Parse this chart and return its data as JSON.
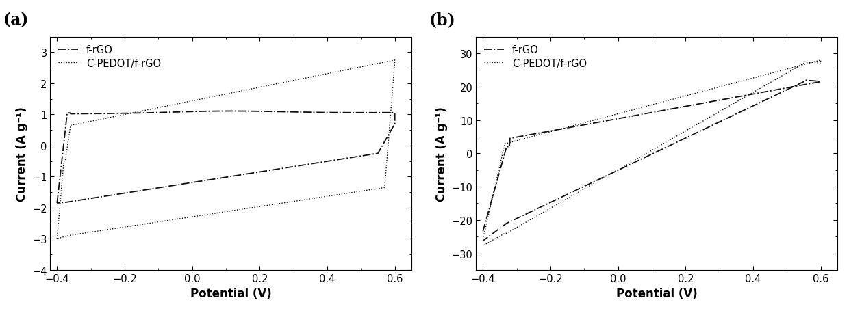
{
  "panel_a": {
    "label": "(a)",
    "xlabel": "Potential (V)",
    "ylabel": "Current (A g⁻¹)",
    "xlim": [
      -0.42,
      0.65
    ],
    "ylim": [
      -4,
      3.5
    ],
    "yticks": [
      -4,
      -3,
      -2,
      -1,
      0,
      1,
      2,
      3
    ],
    "xticks": [
      -0.4,
      -0.2,
      0.0,
      0.2,
      0.4,
      0.6
    ],
    "legend1": "f-rGO",
    "legend2": "C-PEDOT/f-rGO",
    "line_color": "#111111"
  },
  "panel_b": {
    "label": "(b)",
    "xlabel": "Potential (V)",
    "ylabel": "Current (A g⁻¹)",
    "xlim": [
      -0.42,
      0.65
    ],
    "ylim": [
      -35,
      35
    ],
    "yticks": [
      -30,
      -20,
      -10,
      0,
      10,
      20,
      30
    ],
    "xticks": [
      -0.4,
      -0.2,
      0.0,
      0.2,
      0.4,
      0.6
    ],
    "legend1": "f-rGO",
    "legend2": "C-PEDOT/f-rGO",
    "line_color": "#111111"
  }
}
